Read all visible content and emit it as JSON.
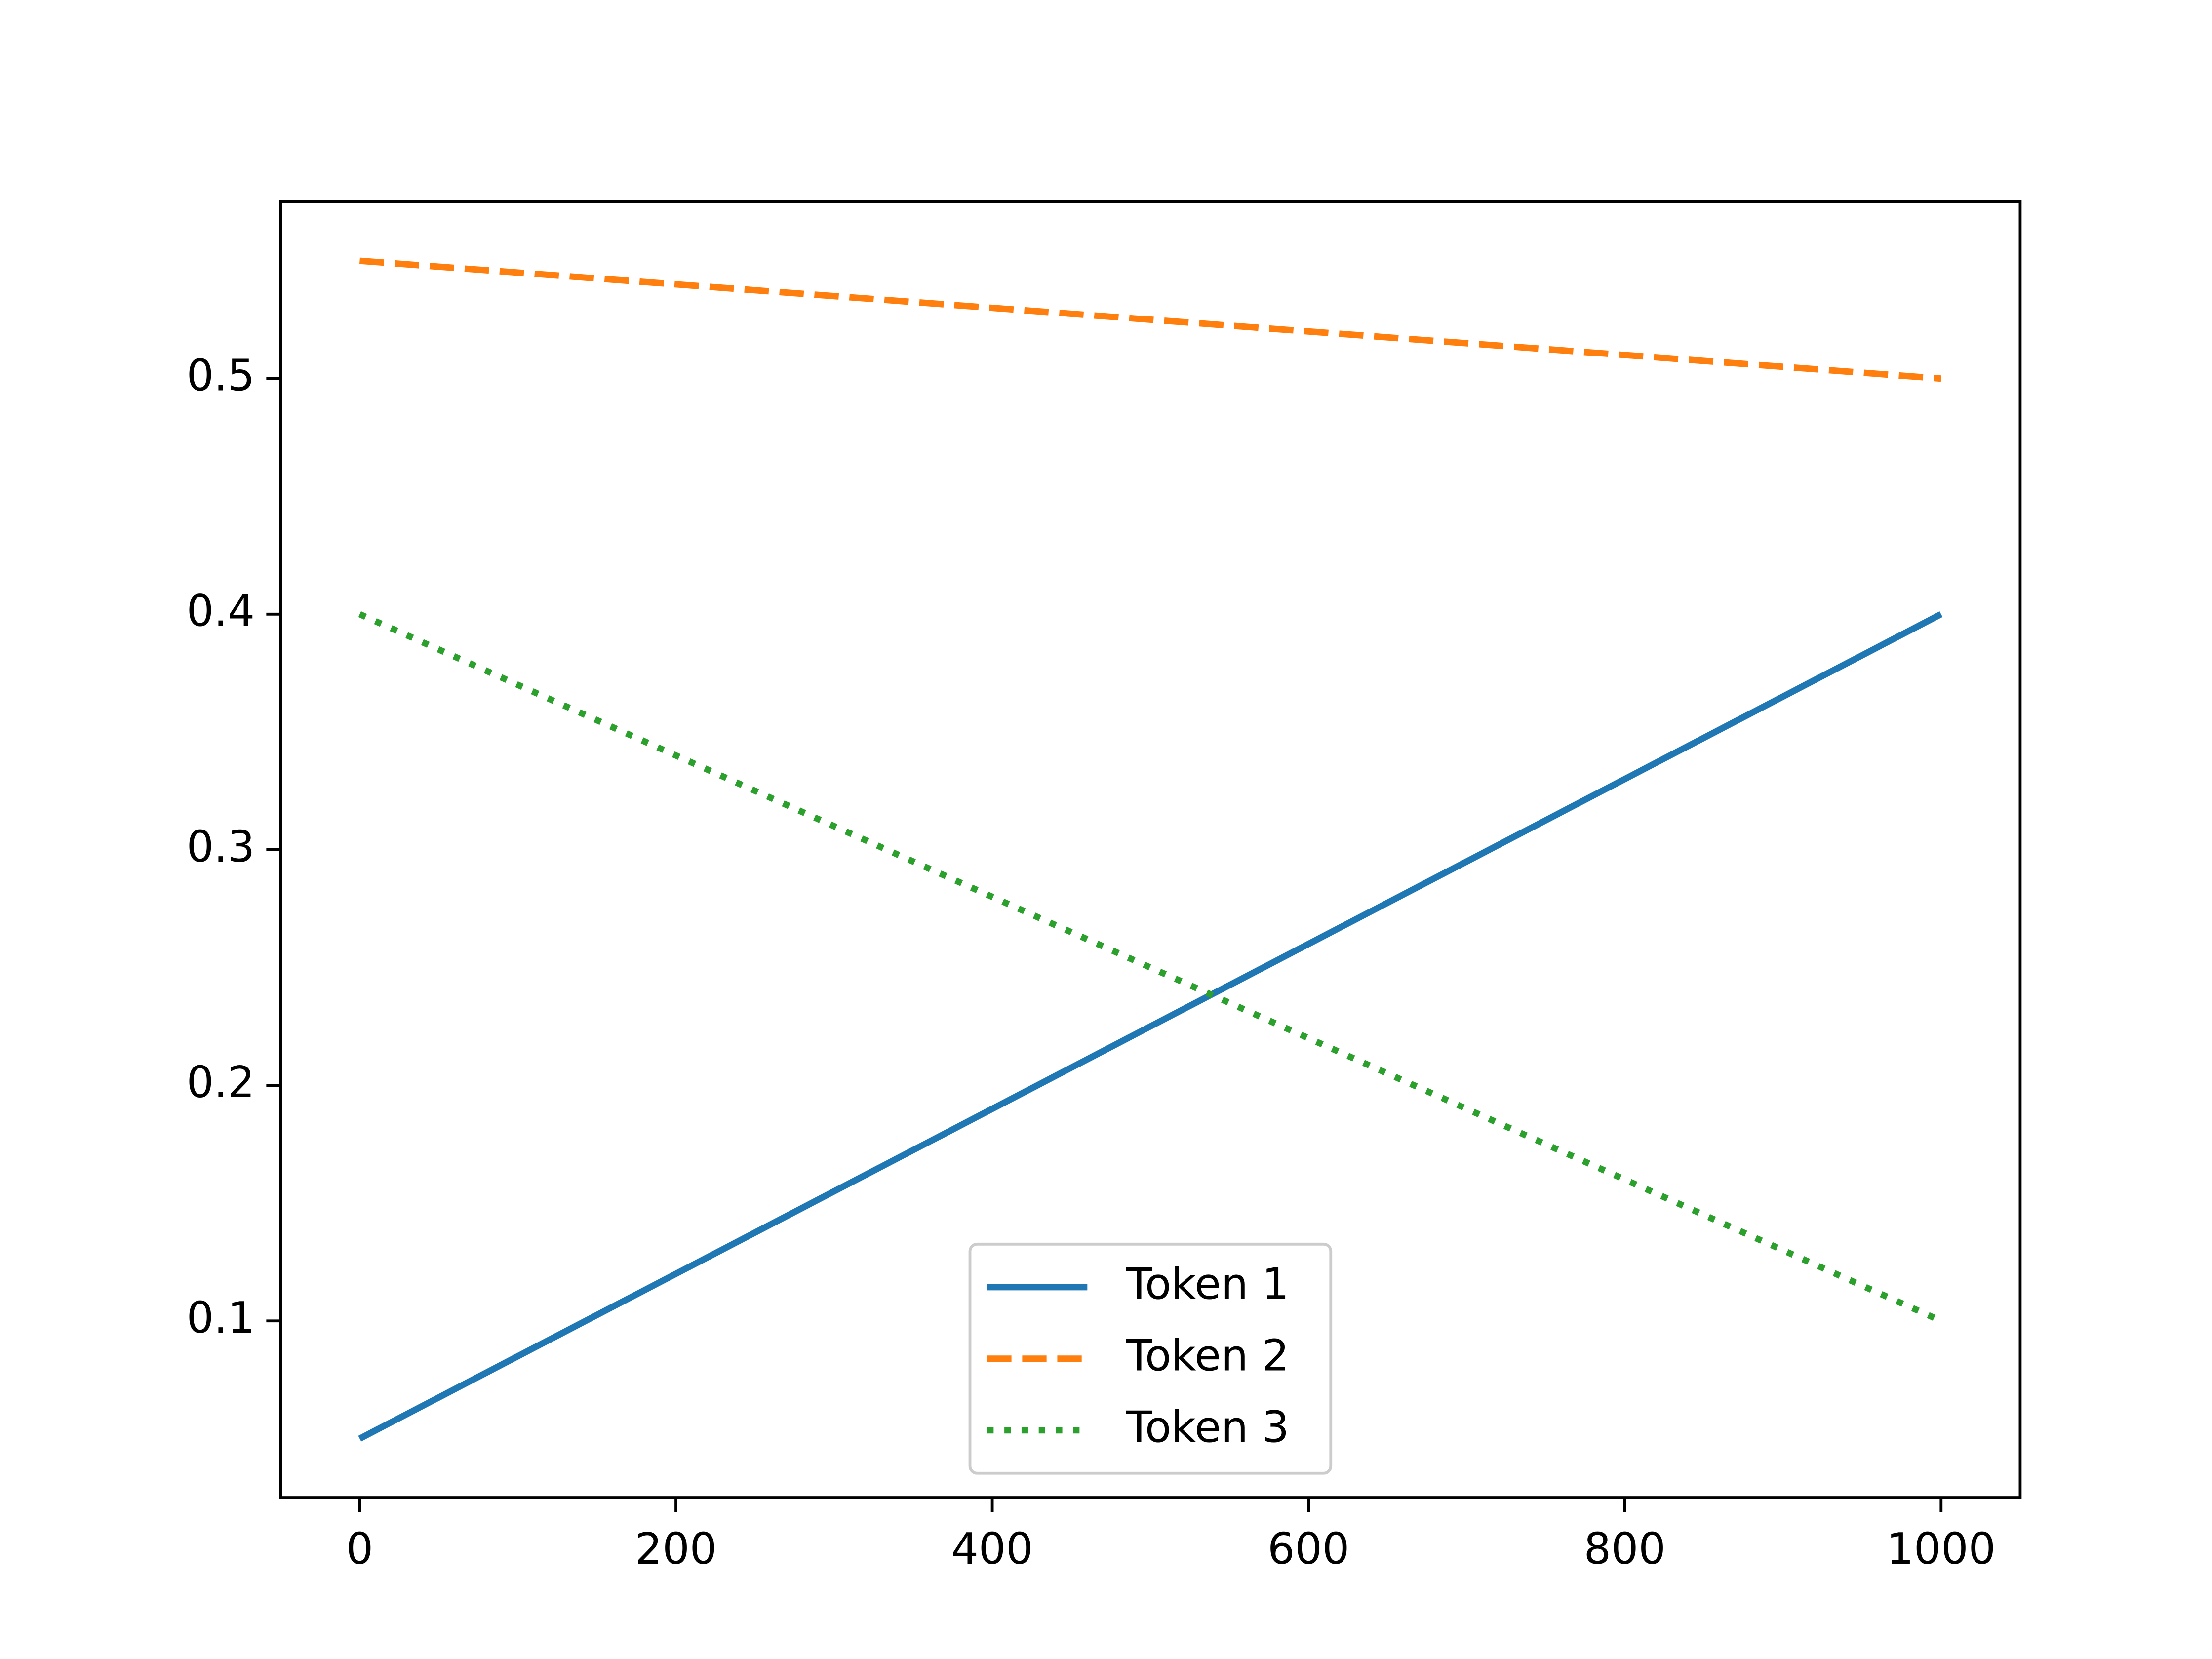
{
  "chart_data": {
    "type": "line",
    "x": [
      0,
      1000
    ],
    "series": [
      {
        "name": "Token 1",
        "color": "#1f77b4",
        "linestyle": "solid",
        "values": [
          0.05,
          0.4
        ]
      },
      {
        "name": "Token 2",
        "color": "#ff7f0e",
        "linestyle": "dashed",
        "values": [
          0.55,
          0.5
        ]
      },
      {
        "name": "Token 3",
        "color": "#2ca02c",
        "linestyle": "dotted",
        "values": [
          0.4,
          0.1
        ]
      }
    ],
    "xlim": [
      -50,
      1050
    ],
    "xticks": [
      0,
      200,
      400,
      600,
      800,
      1000
    ],
    "ylim": [
      0.025,
      0.575
    ],
    "yticks": [
      0.1,
      0.2,
      0.3,
      0.4,
      0.5
    ],
    "grid": false,
    "legend": "lower center"
  }
}
